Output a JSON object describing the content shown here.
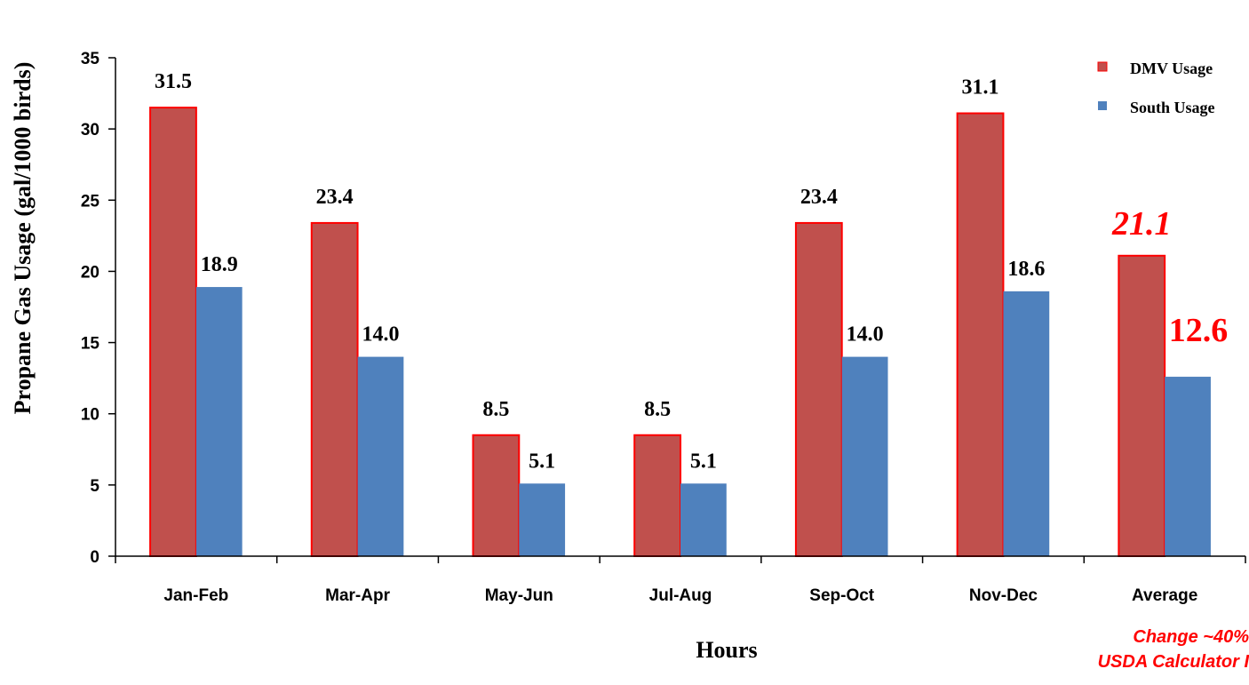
{
  "chart_data": {
    "type": "bar",
    "xlabel": "Hours",
    "ylabel": "Propane Gas Usage (gal/1000 birds)",
    "ylim": [
      0,
      35
    ],
    "yticks": [
      0,
      5,
      10,
      15,
      20,
      25,
      30,
      35
    ],
    "categories": [
      "Jan-Feb",
      "Mar-Apr",
      "May-Jun",
      "Jul-Aug",
      "Sep-Oct",
      "Nov-Dec",
      "Average"
    ],
    "series": [
      {
        "name": "DMV Usage",
        "values": [
          31.5,
          23.4,
          8.5,
          8.5,
          23.4,
          31.1,
          21.1
        ],
        "labels": [
          "31.5",
          "23.4",
          "8.5",
          "8.5",
          "23.4",
          "31.1",
          "21.1"
        ],
        "color": "#c0504d",
        "border": "#ff0000"
      },
      {
        "name": "South Usage",
        "values": [
          18.9,
          14.0,
          5.1,
          5.1,
          14.0,
          18.6,
          12.6
        ],
        "labels": [
          "18.9",
          "14.0",
          "5.1",
          "5.1",
          "14.0",
          "18.6",
          "12.6"
        ],
        "color": "#4f81bd",
        "border": "#4f81bd"
      }
    ],
    "highlight_color": "#ff0000",
    "grid": false,
    "legend_position": "top-right",
    "annotations": [
      "Change ~40%",
      "USDA Calculator I"
    ]
  }
}
